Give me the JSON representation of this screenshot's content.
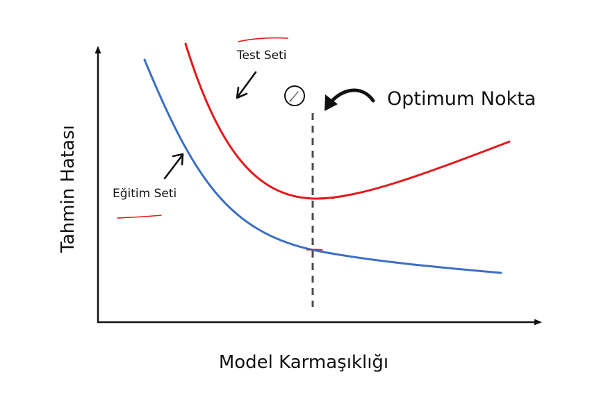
{
  "diagram": {
    "x_axis_label": "Model Karmaşıklığı",
    "y_axis_label": "Tahmin Hatası",
    "test_curve_label": "Test Seti",
    "training_curve_label": "Eğitim Seti",
    "optimum_label": "Optimum Nokta",
    "colors": {
      "test_curve": "#e3181b",
      "training_curve": "#3b6fc4",
      "axis": "#111111",
      "optimum_line": "#4a4a4a",
      "annotation_marks": "#e3181b"
    },
    "icons": {
      "optimum_marker": "circle-pencil-icon",
      "pointer_arrows": "arrow-icon"
    }
  }
}
